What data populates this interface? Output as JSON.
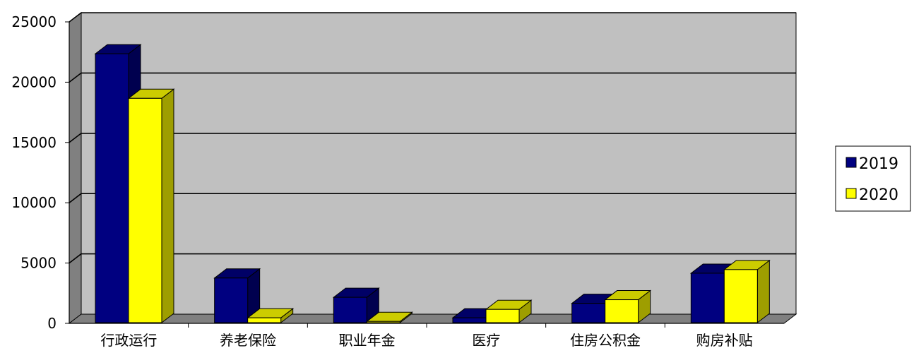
{
  "chart_data": {
    "type": "bar",
    "title": "",
    "xlabel": "",
    "ylabel": "",
    "categories": [
      "行政运行",
      "养老保险",
      "职业年金",
      "医疗",
      "住房公积金",
      "购房补贴"
    ],
    "series": [
      {
        "name": "2019",
        "values": [
          22300,
          3700,
          2100,
          400,
          1600,
          4100
        ],
        "color": "#000080"
      },
      {
        "name": "2020",
        "values": [
          18600,
          400,
          100,
          1100,
          1900,
          4400
        ],
        "color": "#ffff00"
      }
    ],
    "ylim": [
      0,
      25000
    ],
    "y_ticks": [
      "0",
      "5000",
      "10000",
      "15000",
      "20000",
      "25000"
    ],
    "grid": true,
    "legend_position": "right",
    "colors": {
      "plot_back_wall": "#c0c0c0",
      "plot_side_wall": "#808080",
      "floor": "#808080",
      "gridline": "#000000"
    }
  }
}
